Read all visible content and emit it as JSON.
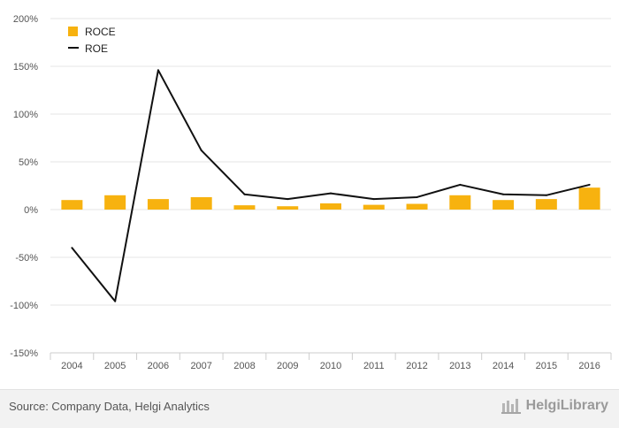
{
  "chart_data": {
    "type": "bar",
    "categories": [
      "2004",
      "2005",
      "2006",
      "2007",
      "2008",
      "2009",
      "2010",
      "2011",
      "2012",
      "2013",
      "2014",
      "2015",
      "2016"
    ],
    "series": [
      {
        "name": "ROCE",
        "type": "bar",
        "color": "#f7b20f",
        "values": [
          10,
          15,
          11,
          13,
          4.5,
          3.5,
          6.5,
          5,
          6,
          15,
          10,
          11,
          23
        ]
      },
      {
        "name": "ROE",
        "type": "line",
        "color": "#111111",
        "values": [
          -40,
          -96,
          146,
          62,
          16,
          11,
          17,
          11,
          13,
          26,
          16,
          15,
          26
        ]
      }
    ],
    "ylim": [
      -150,
      200
    ],
    "yticks": [
      -150,
      -100,
      -50,
      0,
      50,
      100,
      150,
      200
    ],
    "ytick_labels": [
      "-150%",
      "-100%",
      "-50%",
      "0%",
      "50%",
      "100%",
      "150%",
      "200%"
    ],
    "grid": true,
    "legend_position": "top-left"
  },
  "footer": {
    "source": "Source: Company Data, Helgi Analytics",
    "brand": "HelgiLibrary"
  }
}
